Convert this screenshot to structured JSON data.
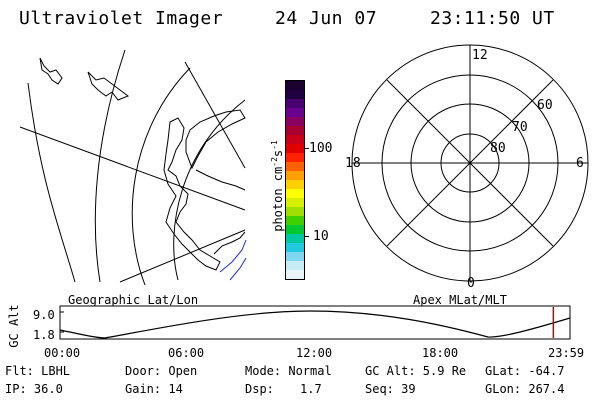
{
  "header": {
    "title": "Ultraviolet Imager",
    "date": "24 Jun 07",
    "time": "23:11:50 UT"
  },
  "panels": {
    "geo_caption": "Geographic Lat/Lon",
    "apex_caption": "Apex MLat/MLT"
  },
  "colorbar": {
    "label": "photon cm",
    "label_sup1": "-2",
    "label_s": "s",
    "label_sup2": "-1",
    "tick_100": "100",
    "tick_10": "10",
    "colors_top_to_bottom": [
      "#1a0030",
      "#200040",
      "#4a0070",
      "#6a0090",
      "#8a0060",
      "#a80030",
      "#c80018",
      "#e00000",
      "#ff2000",
      "#ff6000",
      "#ffa000",
      "#ffd000",
      "#ffff00",
      "#d8f000",
      "#a0e000",
      "#40d000",
      "#00c830",
      "#00c8a0",
      "#20c8e0",
      "#80d8f0",
      "#c8ecf6",
      "#e8f4f8"
    ]
  },
  "polar": {
    "mlt_top": "12",
    "mlt_left": "18",
    "mlt_right": "6",
    "mlt_bottom": "0",
    "lat_60": "60",
    "lat_70": "70",
    "lat_80": "80"
  },
  "altitude_plot": {
    "axis_title": "GC Alt",
    "y_top": "9.0",
    "y_bottom": "1.8",
    "x_ticks": [
      "00:00",
      "06:00",
      "12:00",
      "18:00",
      "23:59"
    ],
    "marker_color": "#d00000",
    "marker_hour": 23.2
  },
  "status": {
    "flt": "Flt: LBHL",
    "ip": "IP: 36.0",
    "door": "Door: Open",
    "gain": "Gain: 14",
    "mode": "Mode: Normal",
    "dsp_label": "Dsp:",
    "dsp_value": "1.7",
    "gc_alt": "GC Alt: 5.9 Re",
    "seq": "Seq: 39",
    "glat": "GLat: -64.7",
    "glon": "GLon: 267.4"
  }
}
